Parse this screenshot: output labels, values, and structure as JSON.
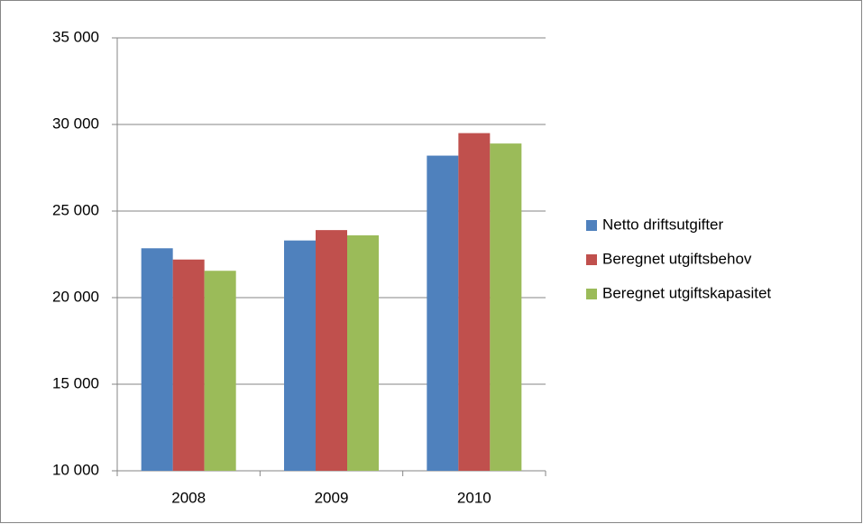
{
  "chart_data": {
    "type": "bar",
    "categories": [
      "2008",
      "2009",
      "2010"
    ],
    "series": [
      {
        "name": "Netto driftsutgifter",
        "color": "#4f81bd",
        "values": [
          22850,
          23300,
          28200
        ]
      },
      {
        "name": "Beregnet utgiftsbehov",
        "color": "#c0504d",
        "values": [
          22200,
          23900,
          29500
        ]
      },
      {
        "name": "Beregnet utgiftskapasitet",
        "color": "#9bbb59",
        "values": [
          21550,
          23600,
          28900
        ]
      }
    ],
    "ylim": [
      10000,
      35000
    ],
    "yticks": [
      {
        "value": 10000,
        "label": "10 000"
      },
      {
        "value": 15000,
        "label": "15 000"
      },
      {
        "value": 20000,
        "label": "20 000"
      },
      {
        "value": 25000,
        "label": "25 000"
      },
      {
        "value": 30000,
        "label": "30 000"
      },
      {
        "value": 35000,
        "label": "35 000"
      }
    ],
    "grid": true,
    "legend": "right"
  }
}
